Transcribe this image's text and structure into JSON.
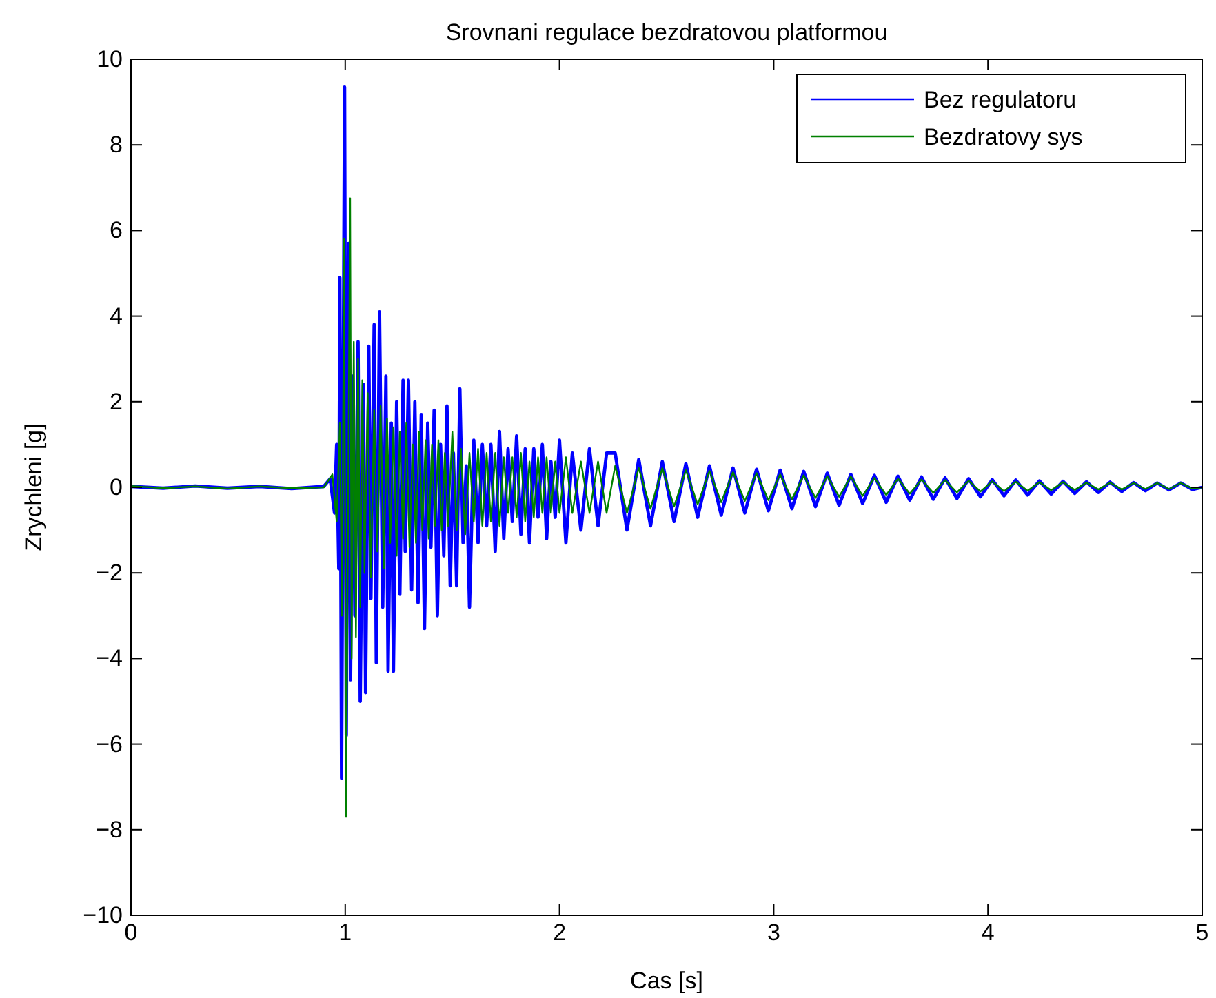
{
  "chart_data": {
    "type": "line",
    "title": "Srovnani regulace bezdratovou platformou",
    "xlabel": "Cas [s]",
    "ylabel": "Zrychleni [g]",
    "xlim": [
      0,
      5
    ],
    "xticks": [
      0,
      1,
      2,
      3,
      4,
      5
    ],
    "ylim": [
      -10,
      10
    ],
    "yticks": [
      -10,
      -8,
      -6,
      -4,
      -2,
      0,
      2,
      4,
      6,
      8,
      10
    ],
    "grid": false,
    "legend": "top right",
    "line_style": "solid",
    "marker": "none",
    "series": [
      {
        "name": "Bez regulatoru",
        "color": "#0000ff",
        "x": [
          0,
          0.15,
          0.3,
          0.45,
          0.6,
          0.75,
          0.9,
          0.93,
          0.95,
          0.96,
          0.97,
          0.975,
          0.983,
          0.997,
          1.005,
          1.015,
          1.025,
          1.035,
          1.045,
          1.06,
          1.07,
          1.085,
          1.095,
          1.11,
          1.12,
          1.135,
          1.145,
          1.16,
          1.175,
          1.19,
          1.2,
          1.215,
          1.225,
          1.24,
          1.255,
          1.27,
          1.28,
          1.295,
          1.31,
          1.325,
          1.34,
          1.355,
          1.37,
          1.385,
          1.4,
          1.415,
          1.43,
          1.445,
          1.46,
          1.475,
          1.49,
          1.505,
          1.52,
          1.535,
          1.55,
          1.565,
          1.58,
          1.6,
          1.62,
          1.64,
          1.66,
          1.68,
          1.7,
          1.72,
          1.74,
          1.76,
          1.78,
          1.8,
          1.82,
          1.84,
          1.86,
          1.88,
          1.9,
          1.92,
          1.94,
          1.96,
          1.98,
          2.0,
          2.03,
          2.06,
          2.1,
          2.14,
          2.18,
          2.22,
          2.26,
          2.315,
          2.37,
          2.425,
          2.48,
          2.535,
          2.59,
          2.645,
          2.7,
          2.755,
          2.81,
          2.865,
          2.92,
          2.975,
          3.03,
          3.085,
          3.14,
          3.195,
          3.25,
          3.305,
          3.36,
          3.415,
          3.47,
          3.525,
          3.58,
          3.635,
          3.69,
          3.745,
          3.8,
          3.855,
          3.91,
          3.965,
          4.02,
          4.075,
          4.13,
          4.185,
          4.24,
          4.295,
          4.35,
          4.405,
          4.46,
          4.515,
          4.57,
          4.625,
          4.68,
          4.735,
          4.79,
          4.845,
          4.9,
          4.955,
          5.0
        ],
        "values": [
          0.02,
          -0.02,
          0.03,
          -0.02,
          0.02,
          -0.03,
          0.02,
          0.2,
          -0.6,
          1.0,
          -1.9,
          4.9,
          -6.8,
          9.35,
          -5.8,
          5.7,
          -4.5,
          2.6,
          -3.0,
          3.4,
          -5.0,
          2.4,
          -4.8,
          3.3,
          -2.6,
          3.8,
          -4.1,
          4.1,
          -2.8,
          2.6,
          -4.3,
          1.5,
          -4.3,
          2.0,
          -2.5,
          2.5,
          -1.5,
          2.5,
          -2.4,
          2.0,
          -2.7,
          1.7,
          -3.3,
          1.5,
          -1.4,
          1.8,
          -3.0,
          1.0,
          -1.6,
          1.9,
          -2.3,
          0.8,
          -2.3,
          2.3,
          -1.3,
          0.5,
          -2.8,
          1.1,
          -1.3,
          1.0,
          -0.9,
          1.0,
          -1.5,
          1.3,
          -1.2,
          0.9,
          -0.8,
          1.2,
          -1.1,
          0.9,
          -1.3,
          0.9,
          -0.7,
          1.0,
          -1.2,
          0.6,
          -0.7,
          1.1,
          -1.3,
          0.8,
          -1.0,
          0.9,
          -0.9,
          0.8,
          0.8,
          -1.0,
          0.65,
          -0.9,
          0.6,
          -0.8,
          0.55,
          -0.7,
          0.5,
          -0.65,
          0.45,
          -0.6,
          0.42,
          -0.55,
          0.4,
          -0.5,
          0.37,
          -0.45,
          0.33,
          -0.42,
          0.3,
          -0.38,
          0.28,
          -0.35,
          0.26,
          -0.3,
          0.24,
          -0.28,
          0.22,
          -0.26,
          0.2,
          -0.22,
          0.18,
          -0.2,
          0.17,
          -0.18,
          0.15,
          -0.16,
          0.14,
          -0.14,
          0.13,
          -0.12,
          0.12,
          -0.1,
          0.11,
          -0.08,
          0.1,
          -0.06,
          0.1,
          -0.05,
          0.0
        ]
      },
      {
        "name": "Bezdratovy sys",
        "color": "#008000",
        "x": [
          0,
          0.15,
          0.3,
          0.45,
          0.6,
          0.75,
          0.9,
          0.94,
          0.96,
          0.975,
          0.985,
          0.995,
          1.004,
          1.023,
          1.03,
          1.04,
          1.05,
          1.06,
          1.07,
          1.08,
          1.09,
          1.105,
          1.12,
          1.135,
          1.15,
          1.165,
          1.18,
          1.195,
          1.21,
          1.225,
          1.24,
          1.255,
          1.27,
          1.285,
          1.3,
          1.315,
          1.33,
          1.345,
          1.36,
          1.375,
          1.39,
          1.405,
          1.42,
          1.435,
          1.45,
          1.465,
          1.48,
          1.5,
          1.52,
          1.54,
          1.56,
          1.58,
          1.6,
          1.62,
          1.64,
          1.66,
          1.68,
          1.7,
          1.72,
          1.74,
          1.76,
          1.78,
          1.8,
          1.82,
          1.84,
          1.86,
          1.88,
          1.9,
          1.92,
          1.94,
          1.96,
          1.98,
          2.0,
          2.03,
          2.06,
          2.1,
          2.14,
          2.18,
          2.22,
          2.26,
          2.315,
          2.37,
          2.425,
          2.48,
          2.535,
          2.59,
          2.645,
          2.7,
          2.755,
          2.81,
          2.865,
          2.92,
          2.975,
          3.03,
          3.085,
          3.14,
          3.195,
          3.25,
          3.305,
          3.36,
          3.415,
          3.47,
          3.525,
          3.58,
          3.635,
          3.69,
          3.745,
          3.8,
          3.855,
          3.91,
          3.965,
          4.02,
          4.075,
          4.13,
          4.185,
          4.24,
          4.295,
          4.35,
          4.405,
          4.46,
          4.515,
          4.57,
          4.625,
          4.68,
          4.735,
          4.79,
          4.845,
          4.9,
          4.955,
          5.0
        ],
        "values": [
          0.03,
          -0.02,
          0.02,
          -0.03,
          0.02,
          -0.02,
          0.0,
          0.3,
          -0.8,
          1.5,
          -3.0,
          5.8,
          -7.7,
          6.75,
          -4.0,
          3.4,
          -3.5,
          3.0,
          -2.8,
          2.5,
          -2.0,
          2.2,
          -2.1,
          1.8,
          -1.5,
          1.9,
          -1.9,
          1.6,
          -1.3,
          1.4,
          -1.6,
          1.3,
          -1.2,
          1.5,
          -1.4,
          1.0,
          -1.3,
          1.3,
          -1.0,
          1.1,
          -1.2,
          1.0,
          -0.9,
          1.1,
          -1.0,
          0.8,
          -0.9,
          1.3,
          -1.0,
          0.9,
          -1.1,
          0.8,
          -0.8,
          0.9,
          -0.9,
          0.8,
          -0.8,
          0.8,
          -0.9,
          0.7,
          -0.6,
          0.7,
          -0.7,
          0.8,
          -0.8,
          0.6,
          -0.7,
          0.7,
          -0.6,
          0.7,
          -0.6,
          0.6,
          -0.6,
          0.7,
          -0.6,
          0.6,
          -0.6,
          0.6,
          -0.6,
          0.5,
          -0.6,
          0.45,
          -0.5,
          0.45,
          -0.45,
          0.4,
          -0.4,
          0.38,
          -0.35,
          0.35,
          -0.32,
          0.33,
          -0.3,
          0.3,
          -0.28,
          0.28,
          -0.25,
          0.26,
          -0.22,
          0.25,
          -0.2,
          0.22,
          -0.18,
          0.2,
          -0.15,
          0.18,
          -0.13,
          0.17,
          -0.12,
          0.15,
          -0.1,
          0.14,
          -0.09,
          0.13,
          -0.08,
          0.12,
          -0.07,
          0.12,
          -0.06,
          0.11,
          -0.05,
          0.11,
          -0.05,
          0.1,
          -0.04,
          0.1,
          -0.04,
          0.1,
          -0.03,
          0.0
        ]
      }
    ]
  }
}
